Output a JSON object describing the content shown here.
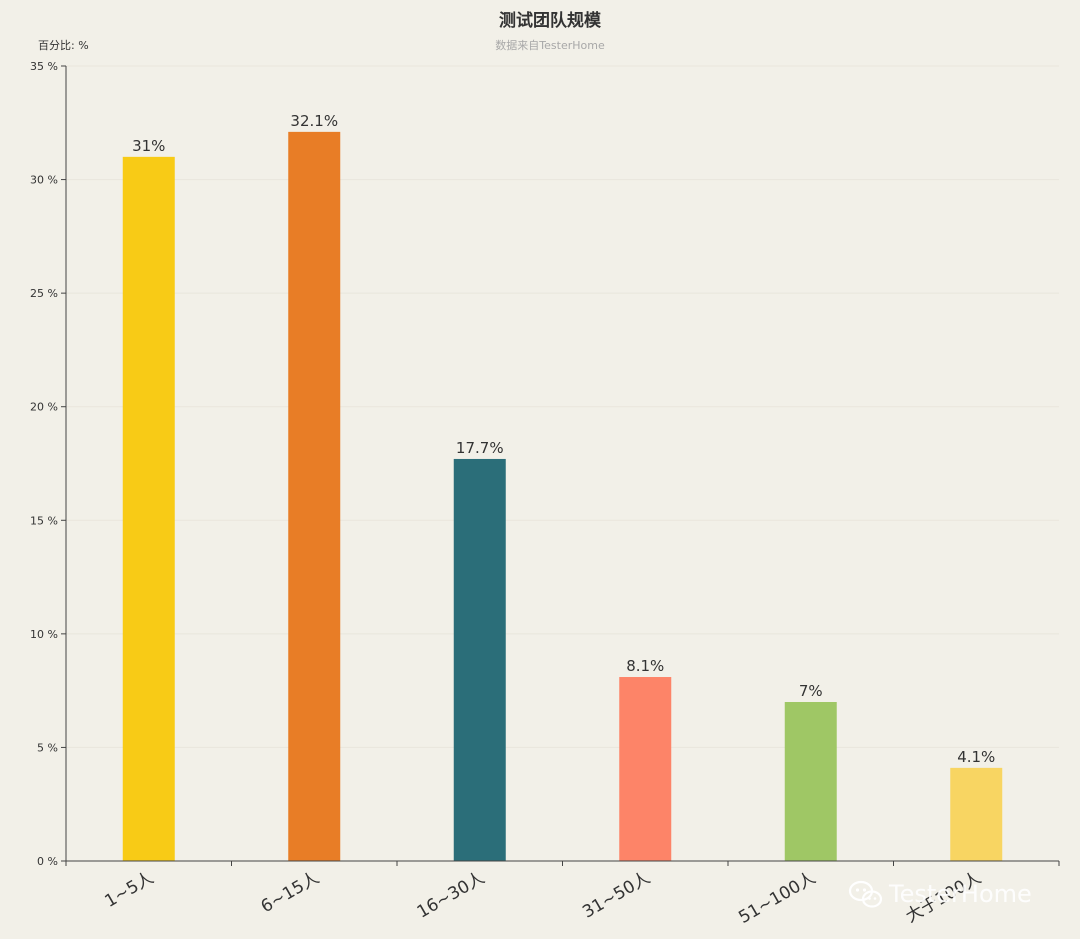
{
  "chart_data": {
    "type": "bar",
    "title": "测试团队规模",
    "subtitle": "数据来自TesterHome",
    "ylabel": "百分比: %",
    "xlabel": "",
    "categories": [
      "1~5人",
      "6~15人",
      "16~30人",
      "31~50人",
      "51~100人",
      "大于100人"
    ],
    "values": [
      31,
      32.1,
      17.7,
      8.1,
      7,
      4.1
    ],
    "data_labels": [
      "31%",
      "32.1%",
      "17.7%",
      "8.1%",
      "7%",
      "4.1%"
    ],
    "colors": [
      "#f8cb16",
      "#e87d26",
      "#2b6e79",
      "#fd8468",
      "#9fc765",
      "#f8d562"
    ],
    "ylim": [
      0,
      35
    ],
    "yticks": [
      0,
      5,
      10,
      15,
      20,
      25,
      30,
      35
    ],
    "ytick_labels": [
      "0 %",
      "5 %",
      "10 %",
      "15 %",
      "20 %",
      "25 %",
      "30 %",
      "35 %"
    ],
    "grid": true,
    "legend": "none"
  },
  "watermark": {
    "text": "TesterHome",
    "icon": "wechat-icon"
  }
}
